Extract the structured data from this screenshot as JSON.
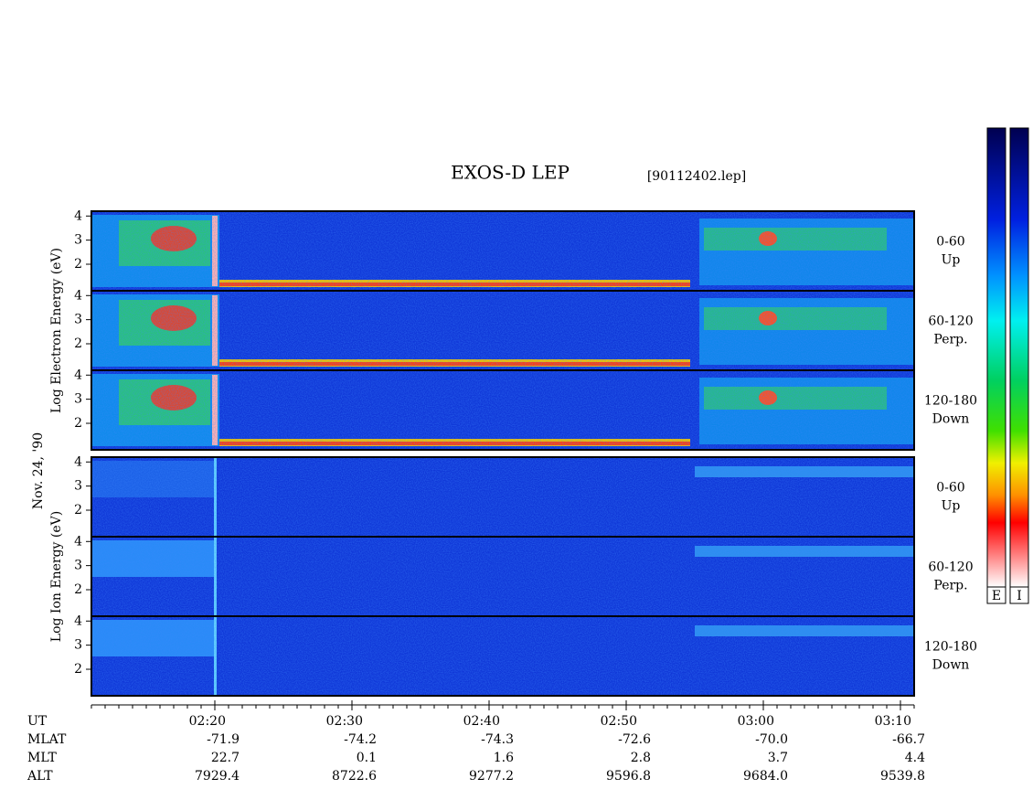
{
  "chart_data": {
    "type": "spectrogram",
    "title": "EXOS-D LEP",
    "subtitle": "[90112402.lep]",
    "date_label": "Nov. 24, '90",
    "groups": [
      {
        "ylabel": "Log Electron Energy (eV)",
        "panels": [
          {
            "angle": "0-60",
            "direction": "Up"
          },
          {
            "angle": "60-120",
            "direction": "Perp."
          },
          {
            "angle": "120-180",
            "direction": "Down"
          }
        ]
      },
      {
        "ylabel": "Log Ion Energy (eV)",
        "panels": [
          {
            "angle": "0-60",
            "direction": "Up"
          },
          {
            "angle": "60-120",
            "direction": "Perp."
          },
          {
            "angle": "120-180",
            "direction": "Down"
          }
        ]
      }
    ],
    "ylim": [
      0.9,
      4.2
    ],
    "yticks": [
      2,
      3,
      4
    ],
    "xlim": [
      131,
      191
    ],
    "xticks": [
      {
        "value": 140,
        "label": "02:20"
      },
      {
        "value": 150,
        "label": "02:30"
      },
      {
        "value": 160,
        "label": "02:40"
      },
      {
        "value": 170,
        "label": "02:50"
      },
      {
        "value": 180,
        "label": "03:00"
      },
      {
        "value": 190,
        "label": "03:10"
      }
    ],
    "xlabel": "UT",
    "ephemeris": [
      {
        "name": "MLAT",
        "values": [
          "-71.9",
          "-74.2",
          "-74.3",
          "-72.6",
          "-70.0",
          "-66.7"
        ]
      },
      {
        "name": "MLT",
        "values": [
          "22.7",
          "0.1",
          "1.6",
          "2.8",
          "3.7",
          "4.4"
        ]
      },
      {
        "name": "ALT",
        "values": [
          "7929.4",
          "8722.6",
          "9277.2",
          "9596.8",
          "9684.0",
          "9539.8"
        ]
      }
    ],
    "colorbars": [
      "E",
      "I"
    ]
  }
}
